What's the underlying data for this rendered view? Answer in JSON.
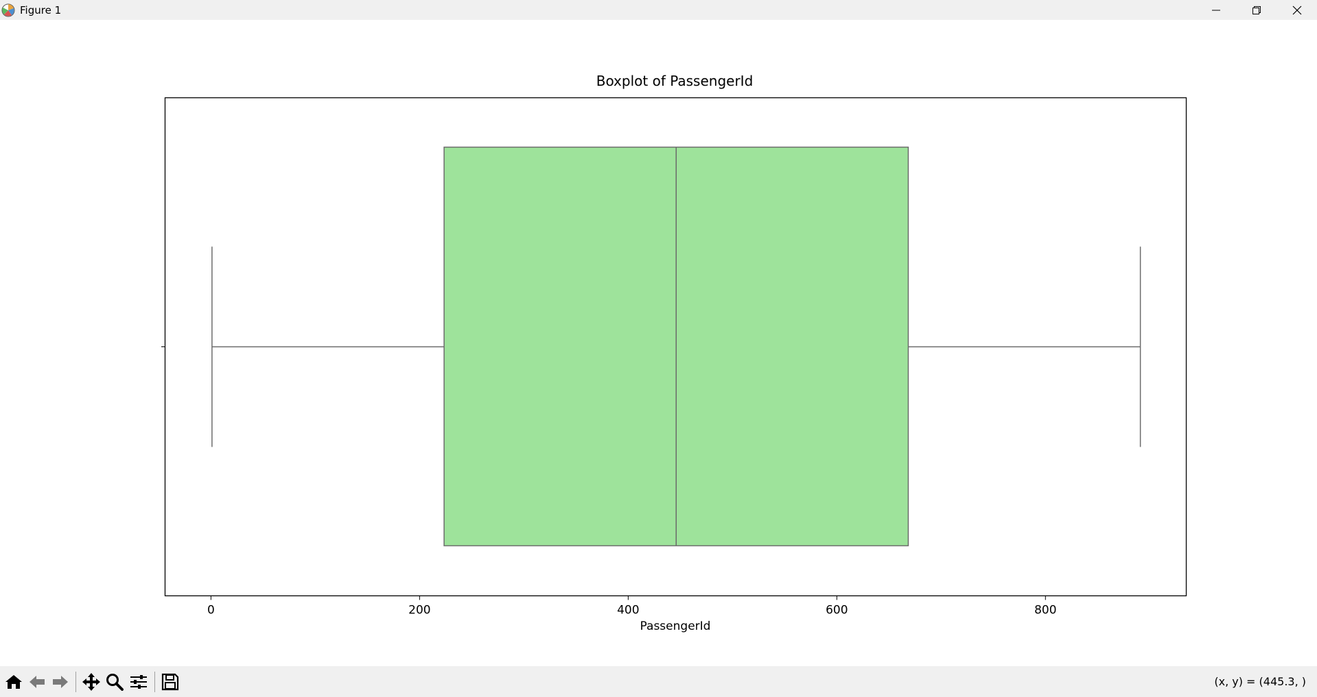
{
  "window": {
    "title": "Figure 1",
    "controls": [
      {
        "name": "minimize-icon"
      },
      {
        "name": "restore-icon"
      },
      {
        "name": "close-icon"
      }
    ]
  },
  "toolbar": {
    "buttons": [
      {
        "name": "home-icon"
      },
      {
        "name": "back-arrow-icon"
      },
      {
        "name": "forward-arrow-icon"
      },
      {
        "name": "pan-icon"
      },
      {
        "name": "zoom-icon"
      },
      {
        "name": "configure-subplots-icon"
      },
      {
        "name": "save-icon"
      }
    ],
    "coords_text": "(x, y) = (445.3, )"
  },
  "chart_data": {
    "type": "boxplot",
    "title": "Boxplot of PassengerId",
    "xlabel": "PassengerId",
    "ylabel": "",
    "orientation": "horizontal",
    "xlim": [
      -44,
      935
    ],
    "xticks": [
      0,
      200,
      400,
      600,
      800
    ],
    "xtick_labels": [
      "0",
      "200",
      "400",
      "600",
      "800"
    ],
    "box": {
      "whisker_low": 1,
      "q1": 223.5,
      "median": 446,
      "q3": 668.5,
      "whisker_high": 891
    },
    "colors": {
      "box_fill": "#9ee39b",
      "box_edge": "#6b6b6b",
      "axes_edge": "#000000"
    },
    "grid": false
  }
}
